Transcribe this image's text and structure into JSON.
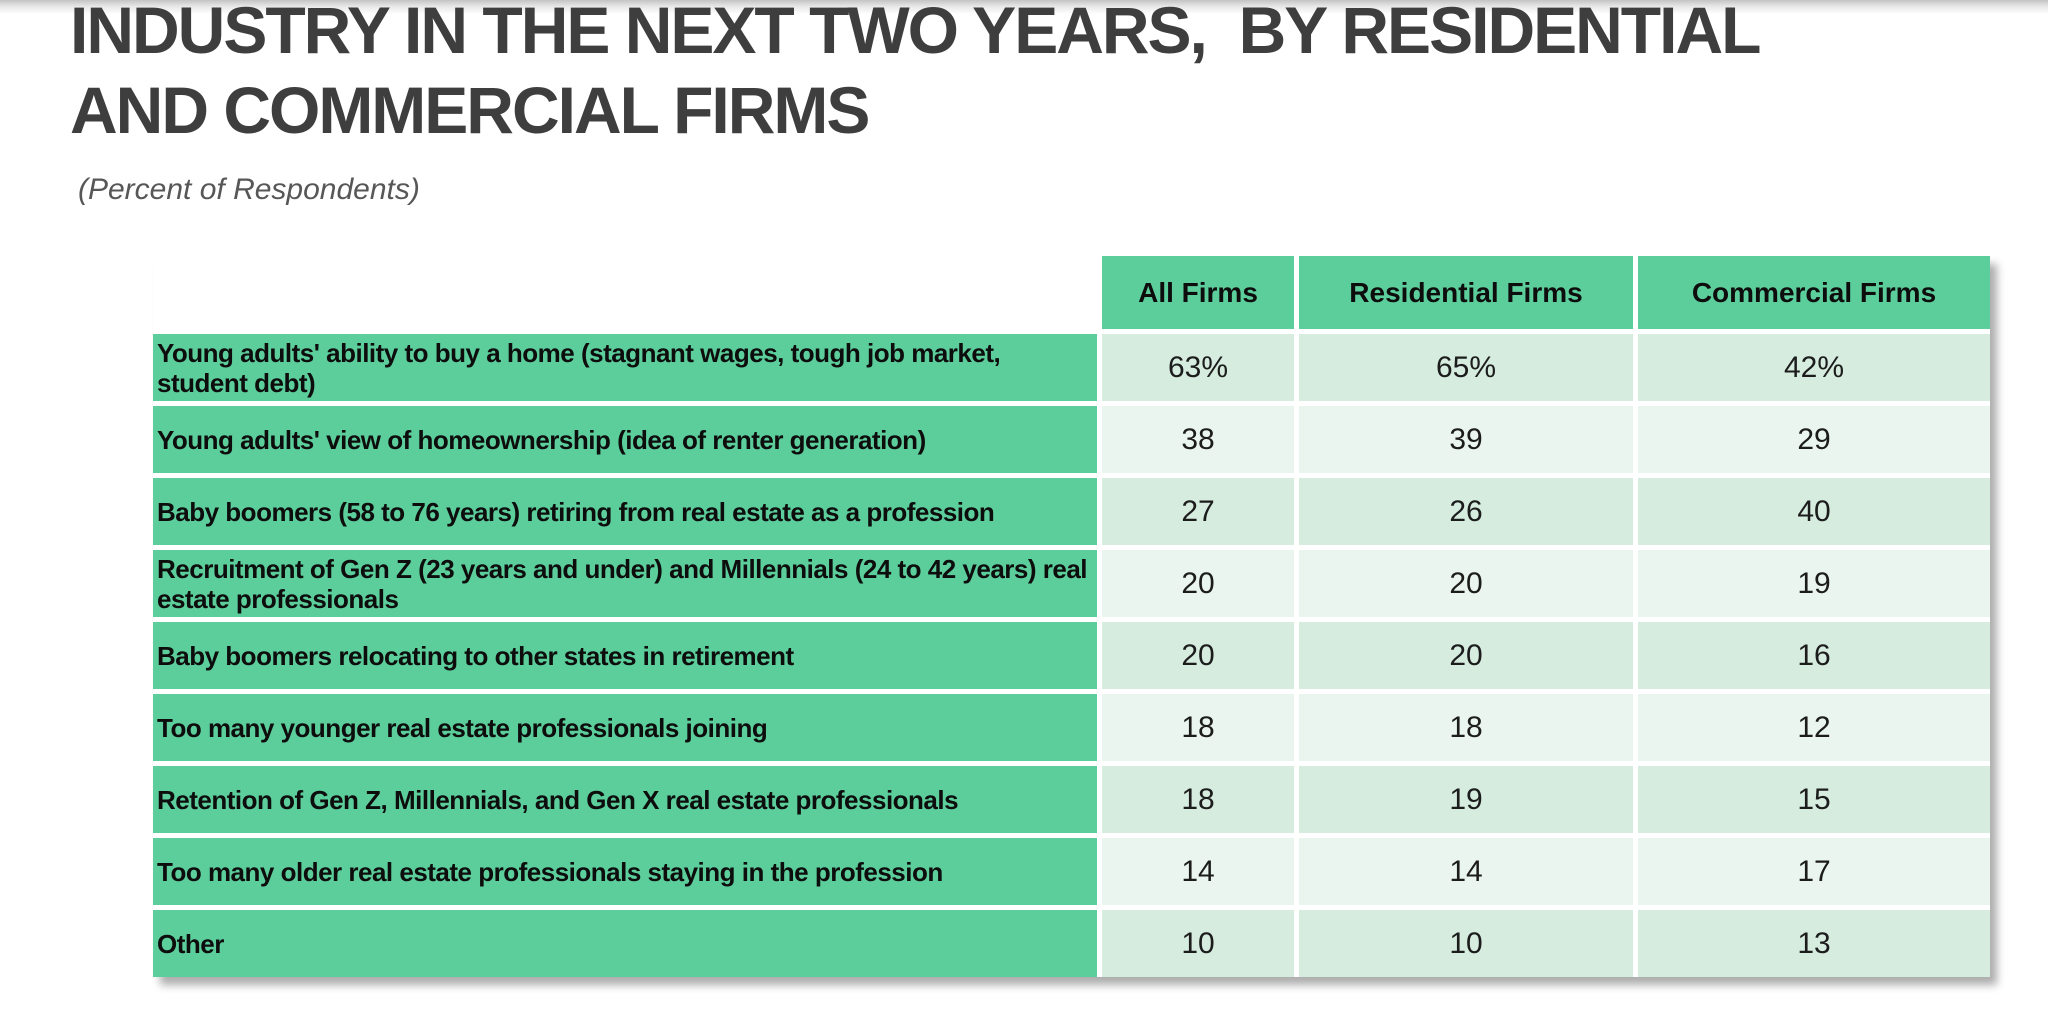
{
  "header": {
    "title_line1": "INDUSTRY IN THE NEXT TWO YEARS,  BY RESIDENTIAL",
    "title_line2": "AND COMMERCIAL FIRMS",
    "subtitle": "(Percent of Respondents)"
  },
  "table": {
    "columns": [
      "All Firms",
      "Residential Firms",
      "Commercial Firms"
    ],
    "rows": [
      {
        "label": "Young adults' ability to buy a home (stagnant wages, tough job market, student debt)",
        "values": [
          "63%",
          "65%",
          "42%"
        ]
      },
      {
        "label": "Young adults' view of homeownership (idea of renter generation)",
        "values": [
          "38",
          "39",
          "29"
        ]
      },
      {
        "label": "Baby boomers (58 to 76 years) retiring from real estate as a profession",
        "values": [
          "27",
          "26",
          "40"
        ]
      },
      {
        "label": "Recruitment of Gen Z (23 years and under) and Millennials (24 to 42 years) real estate professionals",
        "values": [
          "20",
          "20",
          "19"
        ]
      },
      {
        "label": "Baby boomers relocating to other states in retirement",
        "values": [
          "20",
          "20",
          "16"
        ]
      },
      {
        "label": "Too many younger real estate professionals joining",
        "values": [
          "18",
          "18",
          "12"
        ]
      },
      {
        "label": "Retention of Gen Z, Millennials, and Gen X real estate professionals",
        "values": [
          "18",
          "19",
          "15"
        ]
      },
      {
        "label": "Too many older real estate professionals staying in the profession",
        "values": [
          "14",
          "14",
          "17"
        ]
      },
      {
        "label": "Other",
        "values": [
          "10",
          "10",
          "13"
        ]
      }
    ]
  },
  "chart_data": {
    "type": "table",
    "title": "INDUSTRY IN THE NEXT TWO YEARS, BY RESIDENTIAL AND COMMERCIAL FIRMS",
    "subtitle": "(Percent of Respondents)",
    "unit": "percent of respondents",
    "categories": [
      "Young adults' ability to buy a home (stagnant wages, tough job market, student debt)",
      "Young adults' view of homeownership (idea of renter generation)",
      "Baby boomers (58 to 76 years) retiring from real estate as a profession",
      "Recruitment of Gen Z (23 years and under) and Millennials (24 to 42 years) real estate professionals",
      "Baby boomers relocating to other states in retirement",
      "Too many younger real estate professionals joining",
      "Retention of Gen Z, Millennials, and Gen X real estate professionals",
      "Too many older real estate professionals staying in the profession",
      "Other"
    ],
    "series": [
      {
        "name": "All Firms",
        "values": [
          63,
          38,
          27,
          20,
          20,
          18,
          18,
          14,
          10
        ]
      },
      {
        "name": "Residential Firms",
        "values": [
          65,
          39,
          26,
          20,
          20,
          18,
          19,
          14,
          10
        ]
      },
      {
        "name": "Commercial Firms",
        "values": [
          42,
          29,
          40,
          19,
          16,
          12,
          15,
          17,
          13
        ]
      }
    ]
  },
  "theme": {
    "header_green": "#5CCE9B",
    "row_shade_dark": "#D5ECDF",
    "row_shade_light": "#E9F5EE",
    "title_color": "#3E3E3E"
  }
}
